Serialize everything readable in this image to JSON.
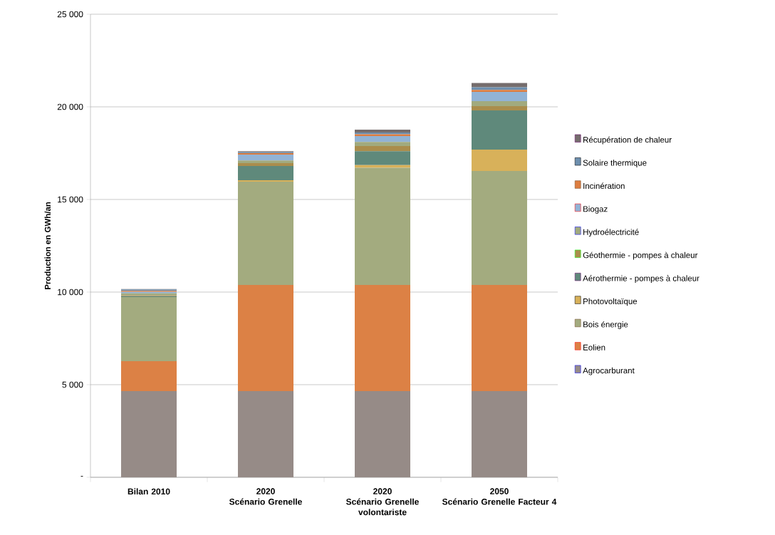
{
  "chart_data": {
    "type": "bar",
    "stacked": true,
    "ylabel": "Production en GWh/an",
    "categories": [
      "Bilan 2010",
      "2020\nScénario Grenelle",
      "2020\nScénario Grenelle volontariste",
      "2050\nScénario Grenelle Facteur 4"
    ],
    "series": [
      {
        "name": "Agrocarburant",
        "color": "#968b87",
        "values": [
          4650,
          4650,
          4650,
          4650
        ]
      },
      {
        "name": "Eolien",
        "color": "#dc8145",
        "values": [
          1620,
          5730,
          5730,
          5730
        ]
      },
      {
        "name": "Bois énergie",
        "color": "#a3ab7f",
        "values": [
          3460,
          5580,
          6330,
          6160
        ]
      },
      {
        "name": "Photovoltaïque",
        "color": "#d8b15a",
        "values": [
          null,
          80,
          150,
          1150
        ]
      },
      {
        "name": "Aérothermie - pompes à chaleur",
        "color": "#5f897b",
        "values": [
          50,
          770,
          750,
          2120
        ]
      },
      {
        "name": "Géothermie - pompes à chaleur",
        "color": "#aa8d4c",
        "values": [
          50,
          150,
          270,
          230
        ]
      },
      {
        "name": "Hydroélectricité",
        "color": "#a1aa7e",
        "values": [
          100,
          150,
          230,
          270
        ]
      },
      {
        "name": "Biogaz",
        "color": "#92b3d5",
        "values": [
          80,
          310,
          310,
          500
        ]
      },
      {
        "name": "Incinération",
        "color": "#dd7d40",
        "values": [
          60,
          80,
          100,
          100
        ]
      },
      {
        "name": "Solaire thermique",
        "color": "#6e8fae",
        "values": [
          60,
          60,
          100,
          150
        ]
      },
      {
        "name": "Récupération de chaleur",
        "color": "#756d6d",
        "values": [
          30,
          50,
          150,
          230
        ]
      }
    ],
    "ylim": [
      0,
      25000
    ],
    "yticks": [
      {
        "value": 0,
        "label": "-"
      },
      {
        "value": 5000,
        "label": "5 000"
      },
      {
        "value": 10000,
        "label": "10 000"
      },
      {
        "value": 15000,
        "label": "15 000"
      },
      {
        "value": 20000,
        "label": "20 000"
      },
      {
        "value": 25000,
        "label": "25 000"
      }
    ],
    "grid": "y",
    "legend": "right"
  }
}
